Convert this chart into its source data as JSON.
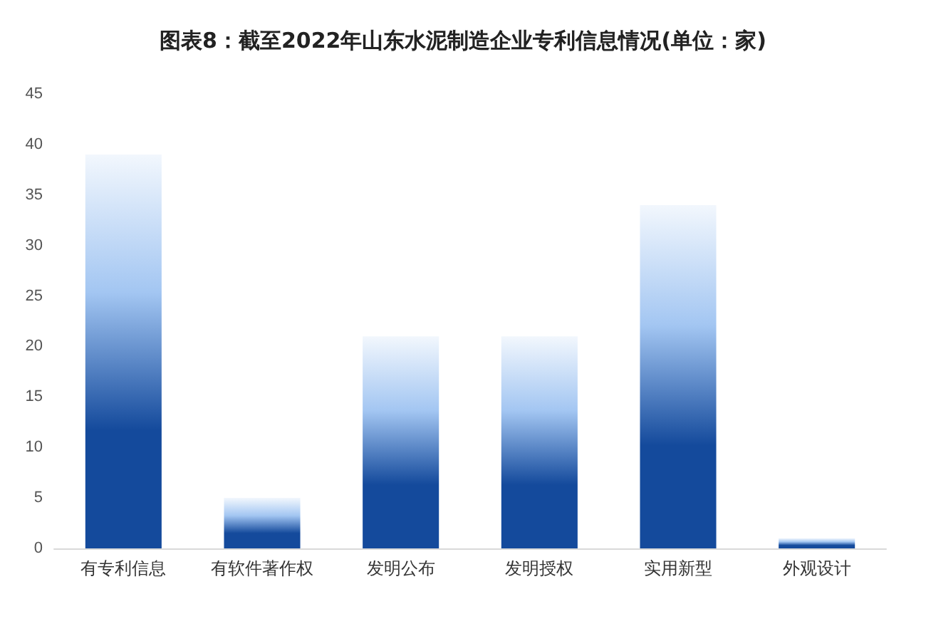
{
  "chart_data": {
    "type": "bar",
    "title": "图表8：截至2022年山东水泥制造企业专利信息情况(单位：家)",
    "categories": [
      "有专利信息",
      "有软件著作权",
      "发明公布",
      "发明授权",
      "实用新型",
      "外观设计"
    ],
    "values": [
      39,
      5,
      21,
      21,
      34,
      1
    ],
    "color": "#144a9c",
    "ylim": [
      0,
      45
    ],
    "yticks": [
      0,
      5,
      10,
      15,
      20,
      25,
      30,
      35,
      40,
      45
    ]
  }
}
